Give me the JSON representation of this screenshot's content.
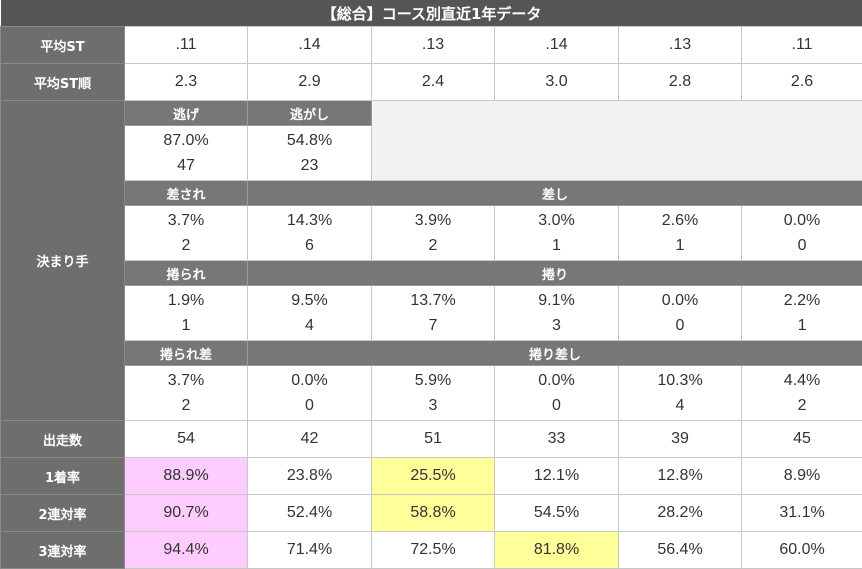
{
  "title": "【総合】コース別直近1年データ",
  "labels": {
    "avg_st": "平均ST",
    "avg_st_rank": "平均ST順",
    "kimarite": "決まり手",
    "starts": "出走数",
    "win_rate": "1着率",
    "top2_rate": "2連対率",
    "top3_rate": "3連対率"
  },
  "avg_st": [
    ".11",
    ".14",
    ".13",
    ".14",
    ".13",
    ".11"
  ],
  "avg_st_rank": [
    "2.3",
    "2.9",
    "2.4",
    "3.0",
    "2.8",
    "2.6"
  ],
  "kimarite": {
    "nige": {
      "label": "逃げ",
      "pct": "87.0%",
      "count": "47"
    },
    "nigashi": {
      "label": "逃がし",
      "pct": "54.8%",
      "count": "23"
    },
    "sasare": {
      "label": "差され",
      "pct": "3.7%",
      "count": "2"
    },
    "sashi": {
      "label": "差し",
      "values": [
        {
          "pct": "14.3%",
          "count": "6"
        },
        {
          "pct": "3.9%",
          "count": "2"
        },
        {
          "pct": "3.0%",
          "count": "1"
        },
        {
          "pct": "2.6%",
          "count": "1"
        },
        {
          "pct": "0.0%",
          "count": "0"
        }
      ]
    },
    "makurare": {
      "label": "捲られ",
      "pct": "1.9%",
      "count": "1"
    },
    "makuri": {
      "label": "捲り",
      "values": [
        {
          "pct": "9.5%",
          "count": "4"
        },
        {
          "pct": "13.7%",
          "count": "7"
        },
        {
          "pct": "9.1%",
          "count": "3"
        },
        {
          "pct": "0.0%",
          "count": "0"
        },
        {
          "pct": "2.2%",
          "count": "1"
        }
      ]
    },
    "makurare_sa": {
      "label": "捲られ差",
      "pct": "3.7%",
      "count": "2"
    },
    "makuri_sashi": {
      "label": "捲り差し",
      "values": [
        {
          "pct": "0.0%",
          "count": "0"
        },
        {
          "pct": "5.9%",
          "count": "3"
        },
        {
          "pct": "0.0%",
          "count": "0"
        },
        {
          "pct": "10.3%",
          "count": "4"
        },
        {
          "pct": "4.4%",
          "count": "2"
        }
      ]
    }
  },
  "starts": [
    "54",
    "42",
    "51",
    "33",
    "39",
    "45"
  ],
  "win_rate": [
    "88.9%",
    "23.8%",
    "25.5%",
    "12.1%",
    "12.8%",
    "8.9%"
  ],
  "top2_rate": [
    "90.7%",
    "52.4%",
    "58.8%",
    "54.5%",
    "28.2%",
    "31.1%"
  ],
  "top3_rate": [
    "94.4%",
    "71.4%",
    "72.5%",
    "81.8%",
    "56.4%",
    "60.0%"
  ],
  "highlight_colors": {
    "pink": "#ffccff",
    "yellow": "#ffff99"
  }
}
